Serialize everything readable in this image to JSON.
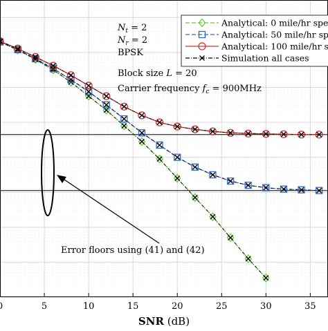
{
  "chart_data": {
    "type": "line",
    "xlabel": "SNR (dB)",
    "xlabel_bold": "SNR",
    "xlabel_unit": "(dB)",
    "xlim": [
      0,
      37
    ],
    "ylim_log10": [
      -8,
      0.5
    ],
    "y_scale": "log",
    "grid": true,
    "x_ticks": [
      0,
      5,
      10,
      15,
      20,
      25,
      30,
      35
    ],
    "x_tick_labels": [
      "0",
      "5",
      "10",
      "15",
      "20",
      "25",
      "30",
      "35"
    ],
    "legend_position": "top-right",
    "legend": [
      {
        "label": "Analytical: 0 mile/hr spe",
        "color": "#66cc33",
        "marker": "diamond",
        "style": "dashed"
      },
      {
        "label": "Analytical: 50 mile/hr sp",
        "color": "#3366cc",
        "marker": "square",
        "style": "dashed"
      },
      {
        "label": "Analytical: 100 mile/hr s",
        "color": "#cc3333",
        "marker": "circle",
        "style": "solid"
      },
      {
        "label": "Simulation all cases",
        "color": "#000000",
        "marker": "x",
        "style": "dashdot"
      }
    ],
    "notes": [
      "N_t = 2",
      "N_r = 2",
      "BPSK",
      "Block size L = 20",
      "Carrier frequency f_c = 900MHz"
    ],
    "annotation": "Error floors using (41) and (42)",
    "error_floors_log10": [
      -3.35,
      -4.95
    ],
    "series": [
      {
        "name": "Analytical: 0 mile/hr spe",
        "x": [
          0,
          2,
          4,
          6,
          8,
          10,
          12,
          14,
          16,
          18,
          20,
          22,
          24,
          26,
          28,
          30
        ],
        "log10_y": [
          -0.7,
          -0.93,
          -1.2,
          -1.5,
          -1.85,
          -2.25,
          -2.65,
          -3.1,
          -3.55,
          -4.05,
          -4.6,
          -5.15,
          -5.7,
          -6.3,
          -6.9,
          -7.45
        ]
      },
      {
        "name": "Analytical: 50 mile/hr sp",
        "x": [
          0,
          2,
          4,
          6,
          8,
          10,
          12,
          14,
          16,
          18,
          20,
          22,
          24,
          26,
          28,
          30,
          32,
          34,
          36
        ],
        "log10_y": [
          -0.7,
          -0.92,
          -1.18,
          -1.46,
          -1.78,
          -2.12,
          -2.5,
          -2.9,
          -3.3,
          -3.65,
          -4.0,
          -4.28,
          -4.5,
          -4.68,
          -4.8,
          -4.87,
          -4.91,
          -4.93,
          -4.95
        ]
      },
      {
        "name": "Analytical: 100 mile/hr s",
        "x": [
          0,
          2,
          4,
          6,
          8,
          10,
          12,
          14,
          16,
          18,
          20,
          22,
          24,
          26,
          28,
          30,
          32,
          34,
          36
        ],
        "log10_y": [
          -0.68,
          -0.89,
          -1.13,
          -1.38,
          -1.65,
          -1.95,
          -2.25,
          -2.55,
          -2.8,
          -3.0,
          -3.12,
          -3.2,
          -3.26,
          -3.3,
          -3.32,
          -3.33,
          -3.34,
          -3.35,
          -3.35
        ]
      }
    ]
  }
}
